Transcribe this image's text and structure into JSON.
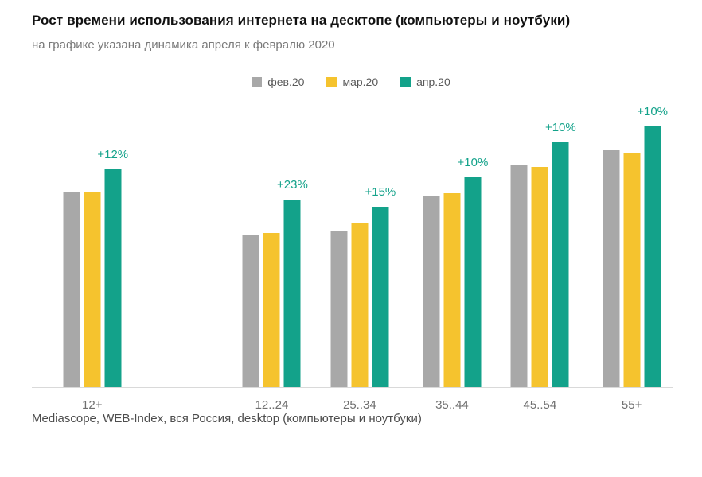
{
  "header": {
    "title": "Рост времени использования интернета на десктопе (компьютеры и ноутбуки)",
    "subtitle": "на графике указана динамика апреля к февралю 2020"
  },
  "footer": {
    "source": "Mediascope, WEB-Index, вся Россия, desktop (компьютеры и ноутбуки)"
  },
  "colors": {
    "feb": "#a8a8a8",
    "mar": "#f5c32e",
    "apr": "#13a28a",
    "annotation": "#13a28a",
    "axis_line": "#d9d9d9",
    "muted_text": "#6f6f6f"
  },
  "chart_data": {
    "type": "bar",
    "title": "Рост времени использования интернета на десктопе (компьютеры и ноутбуки)",
    "subtitle": "на графике указана динамика апреля к февралю 2020",
    "categories": [
      "12+",
      "12..24",
      "25..34",
      "35..44",
      "45..54",
      "55+"
    ],
    "series": [
      {
        "name": "фев.20",
        "color_key": "feb",
        "values": [
          245,
          192,
          197,
          240,
          280,
          298
        ]
      },
      {
        "name": "мар.20",
        "color_key": "mar",
        "values": [
          245,
          194,
          207,
          244,
          277,
          294
        ]
      },
      {
        "name": "апр.20",
        "color_key": "apr",
        "values": [
          274,
          236,
          227,
          264,
          308,
          328
        ]
      }
    ],
    "annotations": [
      "+12%",
      "+23%",
      "+15%",
      "+10%",
      "+10%",
      "+10%"
    ],
    "annotation_meaning": "April 2020 growth vs February 2020 per age group",
    "values_note": "arbitrary relative units estimated from bar heights; no y-axis shown",
    "ylim": [
      0,
      350
    ],
    "grid": false,
    "legend_position": "top-center",
    "xlabel": "",
    "ylabel": ""
  }
}
